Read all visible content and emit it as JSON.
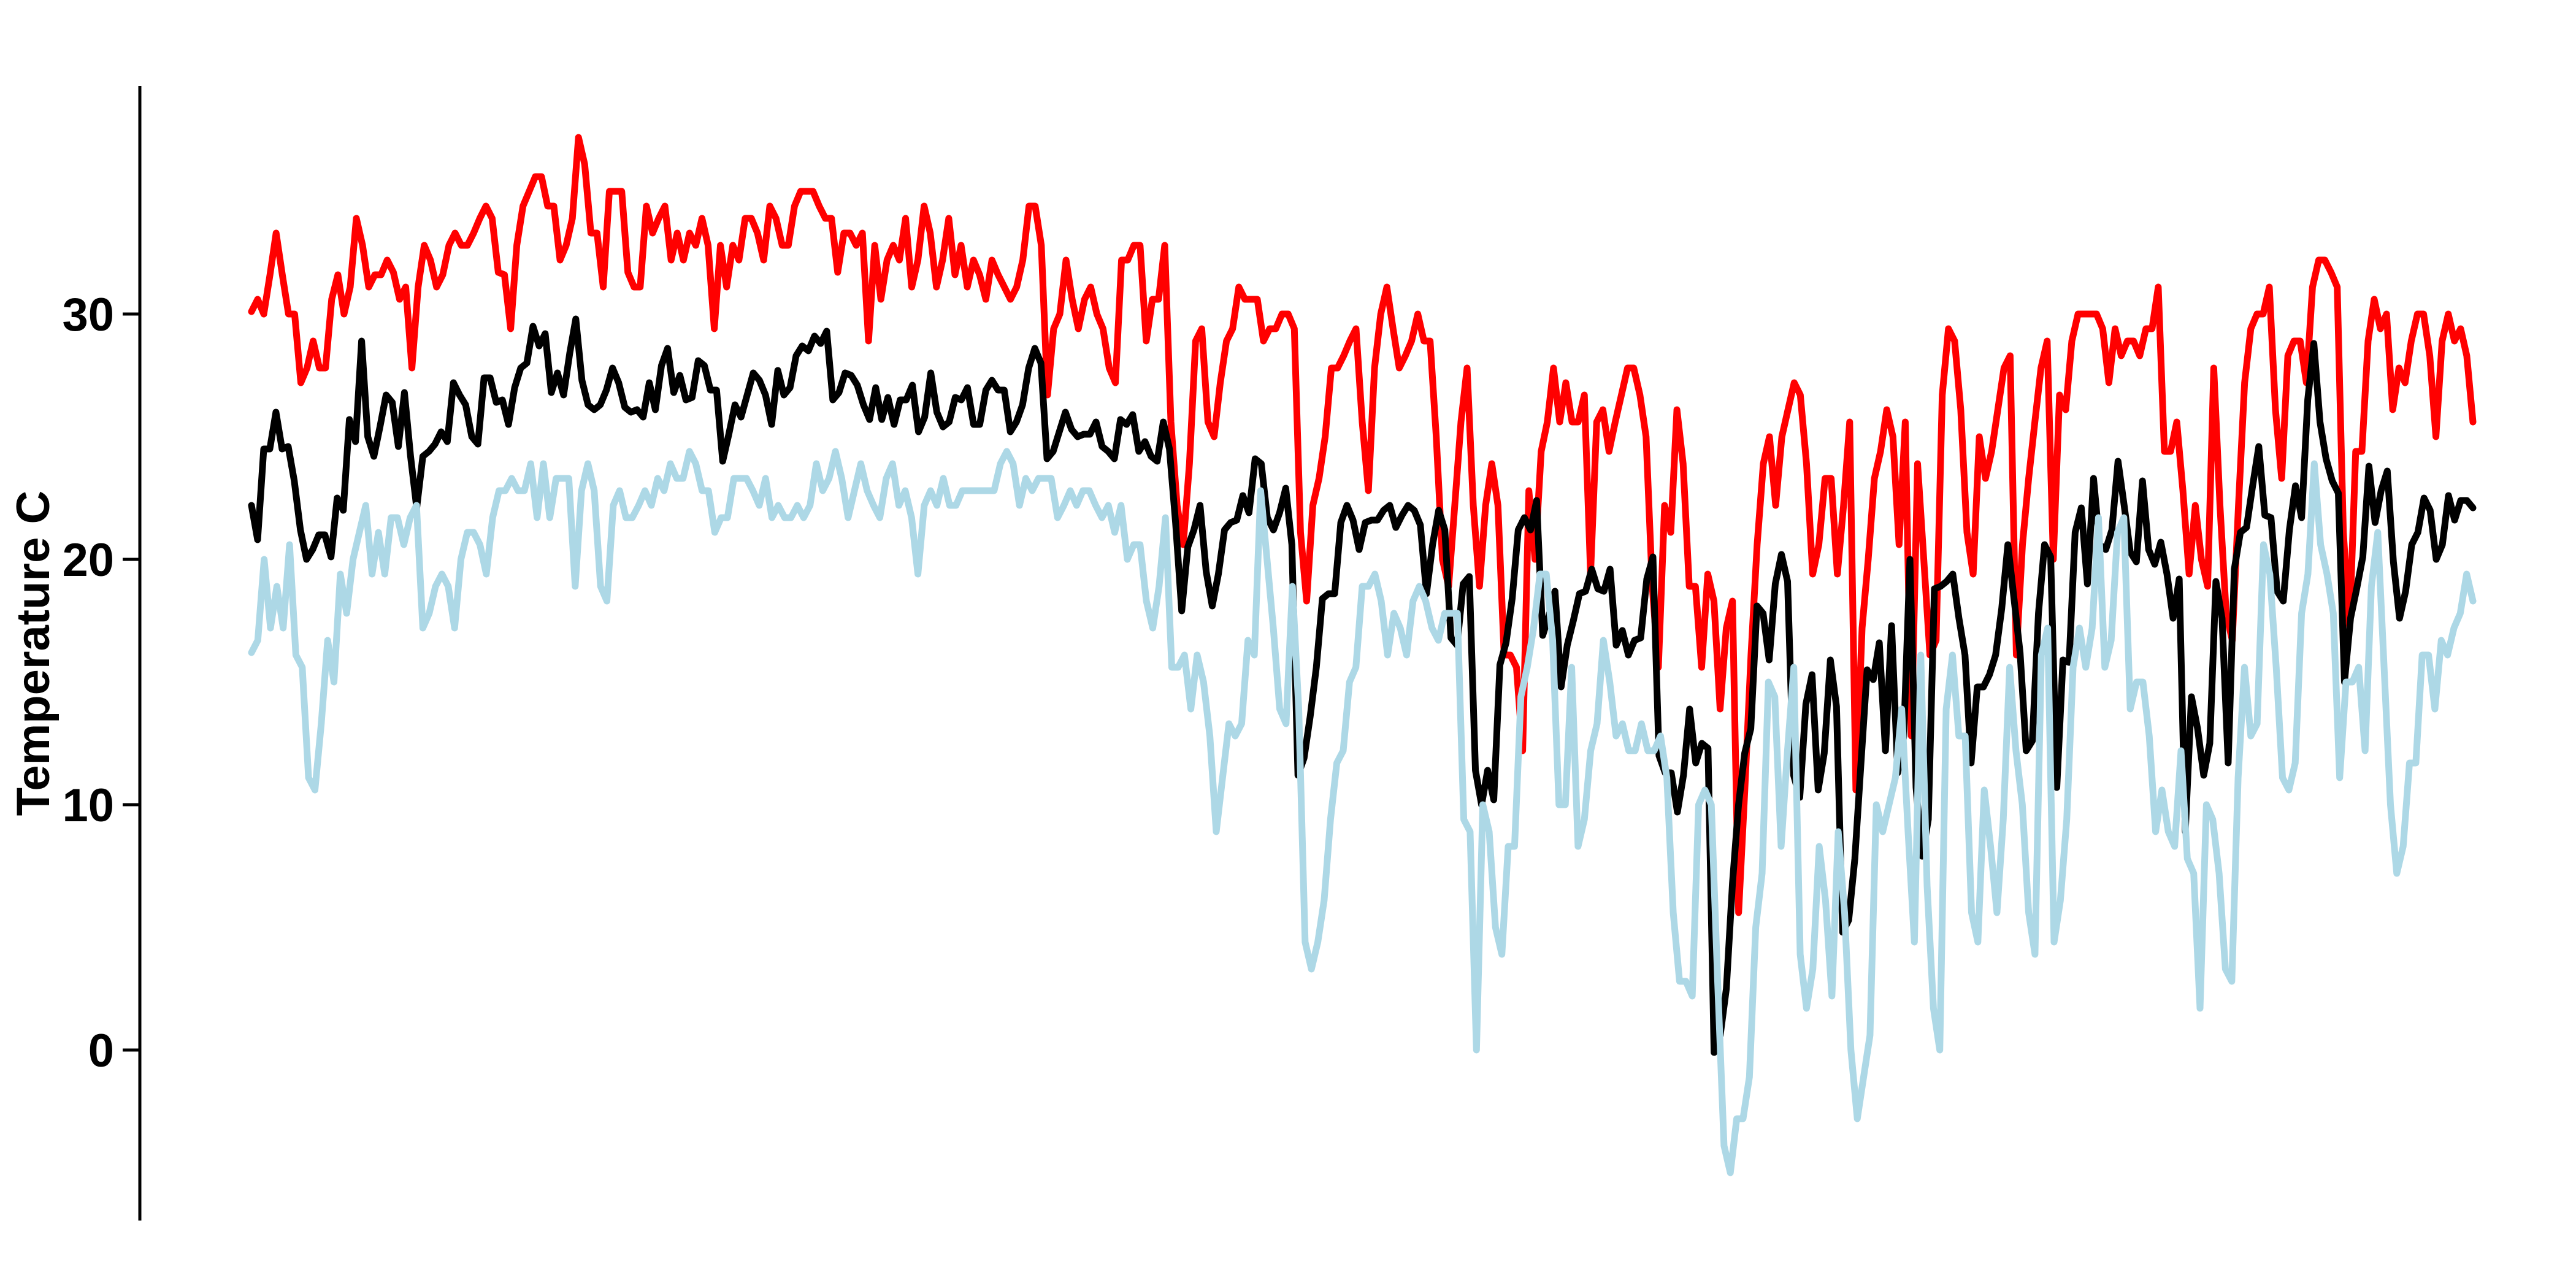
{
  "chart_data": {
    "type": "line",
    "ylabel": "Temperature C",
    "ylim": [
      -7,
      39.5
    ],
    "y_ticks": [
      0,
      10,
      20,
      30
    ],
    "x_axis_visible": false,
    "grid": false,
    "legend": "none",
    "series": [
      {
        "color": "#ff0000",
        "values": [
          30.1,
          30.6,
          30.0,
          31.6,
          33.3,
          31.6,
          30.0,
          30.0,
          27.2,
          27.8,
          28.9,
          27.8,
          27.8,
          30.6,
          31.6,
          30.0,
          31.1,
          33.9,
          32.8,
          31.1,
          31.6,
          31.6,
          32.2,
          31.7,
          30.6,
          31.1,
          27.8,
          31.1,
          32.8,
          32.2,
          31.1,
          31.6,
          32.8,
          33.3,
          32.8,
          32.8,
          33.3,
          33.9,
          34.4,
          33.9,
          31.7,
          31.6,
          29.4,
          32.8,
          34.4,
          35.0,
          35.6,
          35.6,
          34.4,
          34.4,
          32.2,
          32.8,
          33.9,
          37.2,
          36.1,
          33.3,
          33.3,
          31.1,
          35.0,
          35.0,
          35.0,
          31.7,
          31.1,
          31.1,
          34.4,
          33.3,
          33.9,
          34.4,
          32.2,
          33.3,
          32.2,
          33.3,
          32.8,
          33.9,
          32.8,
          29.4,
          32.8,
          31.1,
          32.8,
          32.2,
          33.9,
          33.9,
          33.3,
          32.2,
          34.4,
          33.9,
          32.8,
          32.8,
          34.4,
          35.0,
          35.0,
          35.0,
          34.4,
          33.9,
          33.9,
          31.7,
          33.3,
          33.3,
          32.8,
          33.3,
          28.9,
          32.8,
          30.6,
          32.2,
          32.8,
          32.2,
          33.9,
          31.1,
          32.2,
          34.4,
          33.3,
          31.1,
          32.2,
          33.9,
          31.6,
          32.8,
          31.1,
          32.2,
          31.6,
          30.6,
          32.2,
          31.6,
          31.1,
          30.6,
          31.1,
          32.2,
          34.4,
          34.4,
          32.8,
          26.7,
          29.4,
          30.0,
          32.2,
          30.6,
          29.4,
          30.6,
          31.1,
          30.0,
          29.4,
          27.8,
          27.2,
          32.2,
          32.2,
          32.8,
          32.8,
          28.9,
          30.6,
          30.6,
          32.8,
          25.6,
          22.2,
          20.6,
          23.9,
          28.9,
          29.4,
          25.6,
          25.0,
          27.2,
          28.9,
          29.4,
          31.1,
          30.6,
          30.6,
          30.6,
          28.9,
          29.4,
          29.4,
          30.0,
          30.0,
          29.4,
          21.1,
          18.3,
          22.2,
          23.3,
          25.0,
          27.8,
          27.8,
          28.3,
          28.9,
          29.4,
          25.6,
          22.8,
          27.8,
          30.0,
          31.1,
          29.4,
          27.8,
          28.3,
          28.9,
          30.0,
          28.9,
          28.9,
          25.0,
          20.0,
          18.9,
          22.2,
          25.6,
          27.8,
          22.2,
          18.9,
          22.2,
          23.9,
          22.2,
          16.1,
          16.1,
          15.6,
          12.2,
          22.8,
          20.0,
          24.4,
          25.6,
          27.8,
          25.6,
          27.2,
          25.6,
          25.6,
          26.7,
          19.4,
          25.6,
          26.1,
          24.4,
          25.6,
          26.7,
          27.8,
          27.8,
          26.7,
          25.0,
          18.9,
          15.6,
          22.2,
          21.1,
          26.1,
          23.9,
          18.9,
          18.9,
          15.6,
          19.4,
          18.3,
          13.9,
          17.2,
          18.3,
          5.6,
          10.6,
          16.1,
          20.6,
          23.9,
          25.0,
          22.2,
          25.0,
          26.1,
          27.2,
          26.7,
          23.9,
          19.4,
          20.6,
          23.3,
          23.3,
          19.4,
          22.2,
          25.6,
          10.6,
          17.2,
          20.0,
          23.3,
          24.4,
          26.1,
          25.0,
          20.6,
          25.6,
          12.8,
          23.9,
          20.0,
          16.1,
          16.7,
          26.7,
          29.4,
          28.9,
          26.1,
          21.1,
          19.4,
          25.0,
          23.3,
          24.4,
          26.1,
          27.8,
          28.3,
          16.1,
          20.6,
          23.3,
          25.6,
          27.8,
          28.9,
          20.0,
          26.7,
          26.1,
          28.9,
          30.0,
          30.0,
          30.0,
          30.0,
          29.4,
          27.2,
          29.4,
          28.3,
          28.9,
          28.9,
          28.3,
          29.4,
          29.4,
          31.1,
          24.4,
          24.4,
          25.6,
          22.8,
          19.4,
          22.2,
          20.0,
          18.9,
          27.8,
          22.2,
          17.8,
          16.7,
          22.2,
          27.2,
          29.4,
          30.0,
          30.0,
          31.1,
          26.1,
          23.3,
          28.3,
          28.9,
          28.9,
          27.2,
          31.1,
          32.2,
          32.2,
          31.7,
          31.1,
          21.1,
          17.2,
          24.4,
          24.4,
          28.9,
          30.6,
          29.4,
          30.0,
          26.1,
          27.8,
          27.2,
          28.9,
          30.0,
          30.0,
          28.3,
          25.0,
          28.9,
          30.0,
          28.9,
          29.4,
          28.3,
          25.6
        ]
      },
      {
        "color": "#000000",
        "values": [
          22.2,
          20.8,
          24.5,
          24.5,
          26.0,
          24.5,
          24.6,
          23.2,
          21.2,
          20.0,
          20.4,
          21.0,
          21.0,
          20.1,
          22.5,
          22.0,
          25.7,
          24.8,
          28.9,
          25.0,
          24.2,
          25.4,
          26.7,
          26.4,
          24.6,
          26.8,
          24.2,
          22.1,
          24.2,
          24.4,
          24.7,
          25.2,
          24.8,
          27.2,
          26.7,
          26.3,
          25.0,
          24.7,
          27.4,
          27.4,
          26.4,
          26.5,
          25.5,
          27.0,
          27.8,
          28.0,
          29.5,
          28.7,
          29.2,
          26.8,
          27.6,
          26.7,
          28.4,
          29.8,
          27.3,
          26.3,
          26.1,
          26.3,
          26.9,
          27.8,
          27.2,
          26.2,
          26.0,
          26.1,
          25.8,
          27.2,
          26.1,
          27.9,
          28.6,
          26.8,
          27.5,
          26.5,
          26.6,
          28.1,
          27.9,
          26.9,
          26.9,
          24.0,
          25.1,
          26.3,
          25.8,
          26.7,
          27.6,
          27.3,
          26.7,
          25.5,
          27.7,
          26.7,
          27.0,
          28.3,
          28.7,
          28.5,
          29.1,
          28.8,
          29.3,
          26.5,
          26.8,
          27.6,
          27.5,
          27.1,
          26.3,
          25.7,
          27.0,
          25.7,
          26.6,
          25.5,
          26.5,
          26.5,
          27.1,
          25.2,
          25.8,
          27.6,
          26.0,
          25.4,
          25.6,
          26.6,
          26.5,
          27.0,
          25.5,
          25.5,
          26.9,
          27.3,
          26.9,
          26.9,
          25.2,
          25.6,
          26.3,
          27.8,
          28.6,
          28.0,
          24.1,
          24.4,
          25.2,
          26.0,
          25.3,
          25.0,
          25.1,
          25.1,
          25.6,
          24.6,
          24.4,
          24.1,
          25.7,
          25.5,
          25.9,
          24.4,
          24.8,
          24.2,
          24.0,
          25.6,
          24.5,
          21.5,
          17.9,
          20.5,
          21.2,
          22.2,
          19.5,
          18.1,
          19.4,
          21.2,
          21.5,
          21.6,
          22.6,
          21.9,
          24.1,
          23.9,
          21.7,
          21.2,
          21.9,
          22.9,
          20.6,
          11.2,
          11.9,
          13.6,
          15.6,
          18.4,
          18.6,
          18.6,
          21.5,
          22.2,
          21.6,
          20.4,
          21.5,
          21.6,
          21.6,
          22.0,
          22.2,
          21.3,
          21.8,
          22.2,
          22.0,
          21.4,
          18.6,
          20.6,
          22.0,
          21.2,
          16.8,
          16.5,
          19.0,
          19.3,
          11.4,
          10.0,
          11.4,
          10.2,
          15.7,
          16.6,
          18.4,
          21.2,
          21.7,
          21.2,
          22.4,
          16.9,
          17.7,
          18.7,
          14.8,
          16.5,
          17.5,
          18.6,
          18.7,
          19.6,
          18.8,
          18.7,
          19.6,
          16.5,
          17.1,
          16.1,
          16.7,
          16.8,
          19.2,
          20.1,
          12.0,
          11.3,
          11.3,
          9.7,
          11.2,
          13.9,
          11.7,
          12.5,
          12.3,
          -0.1,
          0.6,
          2.5,
          6.8,
          10.0,
          12.1,
          13.1,
          18.1,
          17.8,
          15.9,
          19.0,
          20.2,
          19.1,
          11.2,
          10.3,
          14.1,
          15.3,
          10.6,
          12.1,
          15.9,
          14.0,
          4.8,
          5.3,
          7.8,
          11.7,
          15.5,
          15.1,
          16.6,
          12.2,
          17.3,
          11.3,
          12.8,
          20.0,
          10.7,
          7.9,
          9.4,
          18.8,
          18.9,
          19.1,
          19.4,
          17.6,
          16.1,
          11.7,
          14.8,
          14.8,
          15.3,
          16.1,
          18.0,
          20.6,
          18.4,
          16.2,
          12.2,
          12.6,
          17.8,
          20.6,
          20.1,
          10.7,
          15.9,
          15.8,
          21.1,
          22.1,
          19.0,
          23.3,
          20.6,
          20.4,
          21.2,
          24.0,
          22.2,
          20.3,
          19.9,
          23.2,
          20.4,
          19.8,
          20.7,
          19.4,
          17.6,
          19.2,
          8.9,
          14.4,
          13.1,
          11.2,
          12.5,
          19.1,
          17.6,
          11.7,
          19.6,
          21.1,
          21.3,
          23.0,
          24.6,
          21.8,
          21.7,
          18.7,
          18.3,
          21.2,
          23.0,
          21.7,
          26.5,
          28.8,
          25.6,
          24.1,
          23.2,
          22.7,
          15.0,
          17.6,
          18.8,
          20.1,
          23.8,
          21.5,
          22.8,
          23.6,
          19.9,
          17.6,
          18.7,
          20.6,
          21.1,
          22.5,
          22.0,
          20.0,
          20.6,
          22.6,
          21.6,
          22.4,
          22.4,
          22.1
        ]
      },
      {
        "color": "#add8e6",
        "values": [
          16.2,
          16.7,
          20.0,
          17.2,
          18.9,
          17.2,
          20.6,
          16.1,
          15.6,
          11.1,
          10.6,
          13.3,
          16.7,
          15.0,
          19.4,
          17.8,
          20.0,
          21.1,
          22.2,
          19.4,
          21.1,
          19.4,
          21.7,
          21.7,
          20.6,
          21.7,
          22.2,
          17.2,
          17.8,
          18.9,
          19.4,
          18.9,
          17.2,
          20.0,
          21.1,
          21.1,
          20.6,
          19.4,
          21.7,
          22.8,
          22.8,
          23.3,
          22.8,
          22.8,
          23.9,
          21.7,
          23.9,
          21.7,
          23.3,
          23.3,
          23.3,
          18.9,
          22.8,
          23.9,
          22.8,
          18.9,
          18.3,
          22.2,
          22.8,
          21.7,
          21.7,
          22.2,
          22.8,
          22.2,
          23.3,
          22.8,
          23.9,
          23.3,
          23.3,
          24.4,
          23.9,
          22.8,
          22.8,
          21.1,
          21.7,
          21.7,
          23.3,
          23.3,
          23.3,
          22.8,
          22.2,
          23.3,
          21.7,
          22.2,
          21.7,
          21.7,
          22.2,
          21.7,
          22.2,
          23.9,
          22.8,
          23.3,
          24.4,
          23.3,
          21.7,
          22.8,
          23.9,
          22.8,
          22.2,
          21.7,
          23.3,
          23.9,
          22.2,
          22.8,
          21.7,
          19.4,
          22.2,
          22.8,
          22.2,
          23.3,
          22.2,
          22.2,
          22.8,
          22.8,
          22.8,
          22.8,
          22.8,
          22.8,
          23.9,
          24.4,
          23.9,
          22.2,
          23.3,
          22.8,
          23.3,
          23.3,
          23.3,
          21.7,
          22.2,
          22.8,
          22.2,
          22.8,
          22.8,
          22.2,
          21.7,
          22.2,
          21.1,
          22.2,
          20.0,
          20.6,
          20.6,
          18.3,
          17.2,
          18.9,
          21.7,
          15.6,
          15.6,
          16.1,
          13.9,
          16.1,
          15.0,
          12.8,
          8.9,
          11.1,
          13.3,
          12.8,
          13.3,
          16.7,
          16.1,
          22.8,
          20.0,
          17.2,
          13.9,
          13.3,
          18.9,
          13.9,
          4.4,
          3.3,
          4.4,
          6.1,
          9.4,
          11.7,
          12.2,
          15.0,
          15.6,
          18.9,
          18.9,
          19.4,
          18.3,
          16.1,
          17.8,
          17.2,
          16.1,
          18.3,
          18.9,
          18.3,
          17.2,
          16.7,
          17.8,
          17.8,
          17.8,
          9.4,
          8.9,
          0.0,
          10.0,
          8.9,
          5.0,
          3.9,
          8.3,
          8.3,
          14.4,
          15.6,
          17.2,
          19.4,
          19.4,
          16.7,
          10.0,
          10.0,
          15.6,
          8.3,
          9.4,
          12.2,
          13.3,
          16.7,
          15.0,
          12.8,
          13.3,
          12.2,
          12.2,
          13.3,
          12.2,
          12.2,
          12.8,
          11.1,
          5.6,
          2.8,
          2.8,
          2.2,
          10.0,
          10.6,
          10.0,
          2.8,
          -3.9,
          -5.0,
          -2.8,
          -2.8,
          -1.1,
          5.0,
          7.2,
          15.0,
          14.4,
          8.3,
          12.2,
          15.6,
          3.9,
          1.7,
          3.3,
          8.3,
          6.1,
          2.2,
          8.9,
          5.6,
          0.0,
          -2.8,
          -1.1,
          0.6,
          10.0,
          8.9,
          10.0,
          11.1,
          13.9,
          8.9,
          4.4,
          16.1,
          6.7,
          1.7,
          0.0,
          13.9,
          16.1,
          12.8,
          12.8,
          5.6,
          4.4,
          10.6,
          8.3,
          5.6,
          9.4,
          15.6,
          12.2,
          10.0,
          5.6,
          3.9,
          16.1,
          17.2,
          4.4,
          6.1,
          9.4,
          15.6,
          17.2,
          15.6,
          17.2,
          21.7,
          15.6,
          16.7,
          21.1,
          21.7,
          13.9,
          15.0,
          15.0,
          12.8,
          8.9,
          10.6,
          8.9,
          8.3,
          12.2,
          7.8,
          7.2,
          1.7,
          10.0,
          9.4,
          7.2,
          3.3,
          2.8,
          11.1,
          15.6,
          12.8,
          13.3,
          20.6,
          19.4,
          15.6,
          11.1,
          10.6,
          11.7,
          17.8,
          19.4,
          23.9,
          20.6,
          19.4,
          17.8,
          11.1,
          15.0,
          15.0,
          15.6,
          12.2,
          18.9,
          21.1,
          15.6,
          10.0,
          7.2,
          8.3,
          11.7,
          11.7,
          16.1,
          16.1,
          13.9,
          16.7,
          16.1,
          17.2,
          17.8,
          19.4,
          18.3
        ]
      }
    ]
  }
}
